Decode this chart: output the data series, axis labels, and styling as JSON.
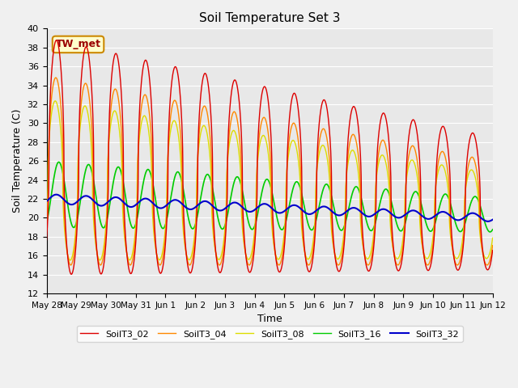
{
  "title": "Soil Temperature Set 3",
  "xlabel": "Time",
  "ylabel": "Soil Temperature (C)",
  "ylim": [
    12,
    40
  ],
  "yticks": [
    12,
    14,
    16,
    18,
    20,
    22,
    24,
    26,
    28,
    30,
    32,
    34,
    36,
    38,
    40
  ],
  "xtick_labels": [
    "May 28",
    "May 29",
    "May 30",
    "May 31",
    "Jun 1",
    "Jun 2",
    "Jun 3",
    "Jun 4",
    "Jun 5",
    "Jun 6",
    "Jun 7",
    "Jun 8",
    "Jun 9",
    "Jun 10",
    "Jun 11",
    "Jun 12"
  ],
  "annotation_text": "TW_met",
  "annotation_box_facecolor": "#ffffcc",
  "annotation_box_edgecolor": "#cc8800",
  "series_colors": {
    "SoilT3_02": "#dd0000",
    "SoilT3_04": "#ff8800",
    "SoilT3_08": "#dddd00",
    "SoilT3_16": "#00cc00",
    "SoilT3_32": "#0000cc"
  },
  "legend_labels": [
    "SoilT3_02",
    "SoilT3_04",
    "SoilT3_08",
    "SoilT3_16",
    "SoilT3_32"
  ],
  "bg_color": "#e8e8e8",
  "n_days": 15
}
